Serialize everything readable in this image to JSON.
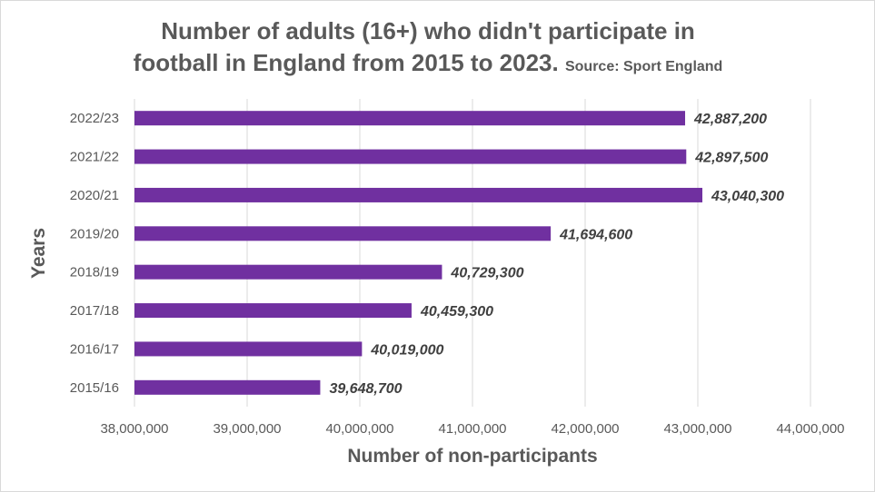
{
  "chart_data": {
    "type": "bar",
    "orientation": "horizontal",
    "title_line1": "Number of adults (16+) who didn't participate in",
    "title_line2": "football in England from 2015 to 2023.",
    "subtitle": "Source: Sport England",
    "xlabel": "Number of non-participants",
    "ylabel": "Years",
    "xlim": [
      38000000,
      44000000
    ],
    "x_ticks": [
      38000000,
      39000000,
      40000000,
      41000000,
      42000000,
      43000000,
      44000000
    ],
    "x_tick_labels": [
      "38,000,000",
      "39,000,000",
      "40,000,000",
      "41,000,000",
      "42,000,000",
      "43,000,000",
      "44,000,000"
    ],
    "categories": [
      "2022/23",
      "2021/22",
      "2020/21",
      "2019/20",
      "2018/19",
      "2017/18",
      "2016/17",
      "2015/16"
    ],
    "values": [
      42887200,
      42897500,
      43040300,
      41694600,
      40729300,
      40459300,
      40019000,
      39648700
    ],
    "data_labels": [
      "42,887,200",
      "42,897,500",
      "43,040,300",
      "41,694,600",
      "40,729,300",
      "40,459,300",
      "40,019,000",
      "39,648,700"
    ],
    "grid": "vertical",
    "legend": "none",
    "bar_color": "#7030a0"
  }
}
